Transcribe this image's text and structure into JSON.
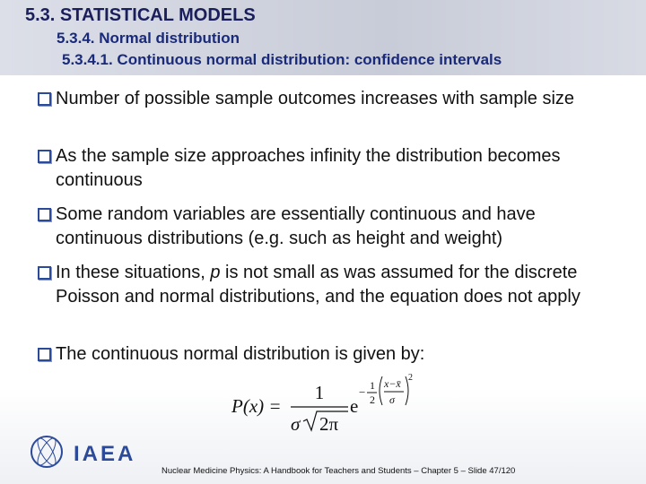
{
  "header": {
    "title": "5.3. STATISTICAL MODELS",
    "subtitle": "5.3.4. Normal distribution",
    "subsubtitle": "5.3.4.1. Continuous normal distribution: confidence intervals"
  },
  "bullets": [
    [
      "Number of possible sample outcomes increases with sample size"
    ],
    [
      "As the sample size approaches infinity the distribution becomes continuous"
    ],
    [
      "Some random variables are essentially continuous and have continuous distributions (e.g.  such as height and weight)"
    ],
    [
      "In these situations, ",
      "p",
      " is not small as was assumed for the discrete Poisson and normal distributions, and the equation does not apply"
    ],
    [
      "The continuous normal distribution is given by:"
    ]
  ],
  "formula": {
    "lhs": "P(x) =",
    "numerator": "1",
    "sigma": "σ",
    "radicand": "2π",
    "e": "e",
    "exp_minus": "−",
    "exp_num": "1",
    "exp_den": "2",
    "inner_num": "x−x̄",
    "inner_den": "σ",
    "power": "2"
  },
  "logo": {
    "text": "IAEA"
  },
  "footer": "Nuclear Medicine Physics:  A Handbook for Teachers and Students – Chapter 5 – Slide 47/120"
}
